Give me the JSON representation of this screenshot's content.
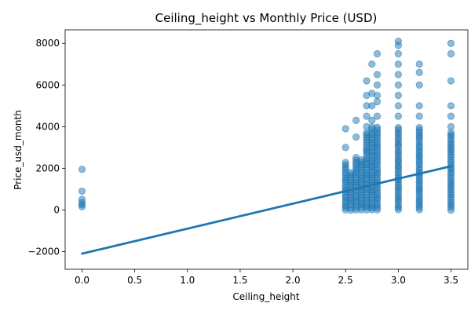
{
  "chart_data": {
    "type": "scatter",
    "title": "Ceiling_height vs Monthly Price (USD)",
    "xlabel": "Ceiling_height",
    "ylabel": "Price_usd_month",
    "xlim": [
      -0.16,
      3.66
    ],
    "ylim": [
      -2850,
      8650
    ],
    "x_ticks": [
      0.0,
      0.5,
      1.0,
      1.5,
      2.0,
      2.5,
      3.0,
      3.5
    ],
    "x_tick_labels": [
      "0.0",
      "0.5",
      "1.0",
      "1.5",
      "2.0",
      "2.5",
      "3.0",
      "3.5"
    ],
    "y_ticks": [
      -2000,
      0,
      2000,
      4000,
      6000,
      8000
    ],
    "y_tick_labels": [
      "−2000",
      "0",
      "2000",
      "4000",
      "6000",
      "8000"
    ],
    "grid": false,
    "point_color": "#1f77b4",
    "point_alpha": 0.5,
    "line_color": "#1f77b4",
    "regression": {
      "x": [
        0.0,
        3.5
      ],
      "y": [
        -2100,
        2100
      ]
    },
    "columns": [
      {
        "x": 0.0,
        "points": [
          150,
          250,
          350,
          500,
          900,
          1950
        ]
      },
      {
        "x": 2.5,
        "min": 0,
        "dense_max": 2300,
        "outliers": [
          3000,
          3900
        ]
      },
      {
        "x": 2.55,
        "min": 0,
        "dense_max": 1800,
        "outliers": []
      },
      {
        "x": 2.6,
        "min": 0,
        "dense_max": 2600,
        "outliers": [
          3500,
          4300
        ]
      },
      {
        "x": 2.65,
        "min": 0,
        "dense_max": 2400,
        "outliers": []
      },
      {
        "x": 2.7,
        "min": 0,
        "dense_max": 3800,
        "outliers": [
          4000,
          4500,
          5000,
          5500,
          6200
        ]
      },
      {
        "x": 2.75,
        "min": 0,
        "dense_max": 4000,
        "outliers": [
          4300,
          5000,
          5600,
          7000
        ]
      },
      {
        "x": 2.8,
        "min": 0,
        "dense_max": 4000,
        "outliers": [
          4500,
          5200,
          5500,
          6000,
          6500,
          7500
        ]
      },
      {
        "x": 3.0,
        "min": 0,
        "dense_max": 4000,
        "outliers": [
          4500,
          5000,
          5500,
          6000,
          6500,
          7000,
          7500,
          7900,
          8100
        ]
      },
      {
        "x": 3.2,
        "min": 0,
        "dense_max": 4000,
        "outliers": [
          4500,
          5000,
          6000,
          6600,
          7000
        ]
      },
      {
        "x": 3.5,
        "min": 0,
        "dense_max": 3800,
        "outliers": [
          4000,
          4500,
          5000,
          6200,
          7500,
          8000
        ]
      }
    ]
  }
}
